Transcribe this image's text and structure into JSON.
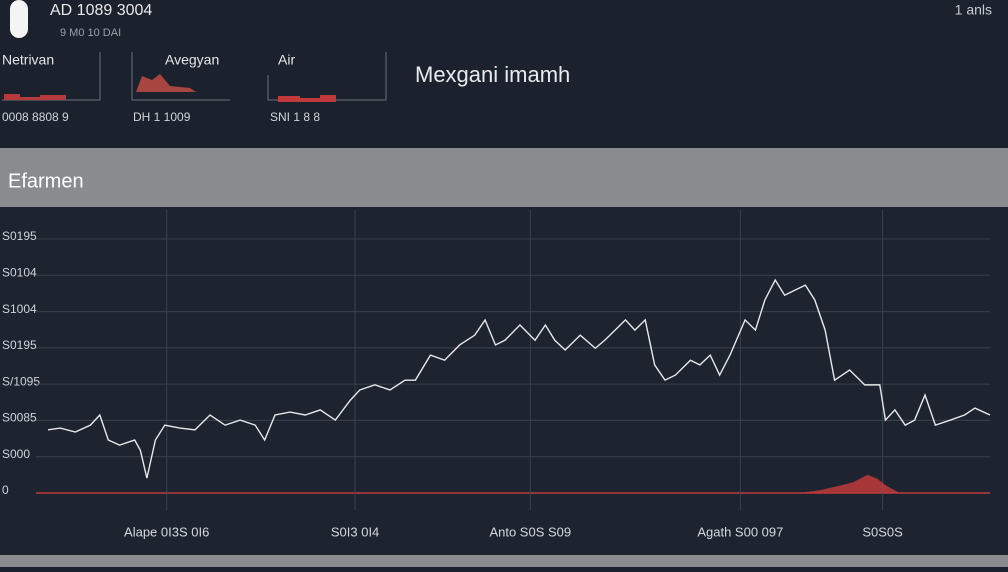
{
  "header": {
    "title": "AD 1089 3004",
    "subtitle": "9 M0 10 DAI",
    "corner": "1 anls"
  },
  "panels": [
    {
      "label": "Netrivan",
      "footer": "0008 8808 9"
    },
    {
      "label": "Avegyan",
      "footer": "DH 1 1009"
    },
    {
      "label": "Air",
      "footer": "SNI 1 8 8"
    }
  ],
  "page_title": "Mexgani imamh",
  "section_title": "Efarmen",
  "chart_data": {
    "type": "line",
    "xlim": [
      0,
      100
    ],
    "ylim": [
      0,
      7.8
    ],
    "yticks": [
      0,
      {
        "value": 1,
        "label": "S000"
      },
      {
        "value": 2,
        "label": "S0085"
      },
      {
        "value": 3,
        "label": "S/1095"
      },
      {
        "value": 4,
        "label": "S0195"
      },
      {
        "value": 5,
        "label": "S1004"
      },
      {
        "value": 6,
        "label": "S0104"
      },
      {
        "value": 7,
        "label": "S0195"
      }
    ],
    "xticks": [
      {
        "value": 12.6,
        "label": "Alape 0I3S 0I6"
      },
      {
        "value": 32.6,
        "label": "S0I3 0I4"
      },
      {
        "value": 51.2,
        "label": "Anto S0S S09"
      },
      {
        "value": 73.5,
        "label": "Agath S00 097"
      },
      {
        "value": 88.6,
        "label": "S0S0S"
      }
    ],
    "grid": true,
    "x": [
      0,
      1.3,
      2.9,
      4.5,
      5.5,
      6.4,
      7.6,
      9.2,
      9.8,
      10.5,
      11.4,
      12.4,
      14.0,
      15.6,
      17.2,
      18.8,
      20.4,
      22.0,
      23.0,
      24.1,
      25.7,
      27.3,
      28.9,
      30.5,
      32.1,
      33.1,
      34.7,
      36.3,
      37.9,
      39.0,
      40.6,
      42.1,
      43.7,
      45.3,
      46.4,
      47.5,
      48.5,
      50.1,
      51.7,
      52.8,
      53.8,
      54.9,
      56.5,
      58.1,
      59.1,
      60.2,
      61.3,
      62.3,
      63.4,
      64.4,
      65.5,
      66.6,
      68.2,
      69.2,
      70.3,
      71.3,
      72.4,
      74.0,
      75.1,
      76.1,
      77.2,
      78.2,
      79.3,
      80.4,
      81.4,
      82.5,
      83.5,
      85.1,
      86.7,
      88.3,
      88.9,
      89.9,
      91.0,
      92.0,
      93.1,
      94.2,
      95.8,
      97.3,
      98.4,
      100
    ],
    "series": [
      {
        "color": "#e6e8ec",
        "values": [
          1.74,
          1.79,
          1.68,
          1.87,
          2.15,
          1.46,
          1.32,
          1.46,
          1.18,
          0.41,
          1.46,
          1.87,
          1.79,
          1.74,
          2.15,
          1.87,
          2.01,
          1.87,
          1.46,
          2.15,
          2.23,
          2.15,
          2.29,
          2.01,
          2.56,
          2.84,
          2.98,
          2.84,
          3.11,
          3.11,
          3.8,
          3.66,
          4.08,
          4.35,
          4.77,
          4.08,
          4.21,
          4.63,
          4.21,
          4.63,
          4.21,
          3.94,
          4.35,
          3.99,
          4.21,
          4.49,
          4.77,
          4.49,
          4.77,
          3.53,
          3.11,
          3.25,
          3.66,
          3.53,
          3.8,
          3.25,
          3.8,
          4.77,
          4.49,
          5.32,
          5.87,
          5.45,
          5.59,
          5.73,
          5.32,
          4.49,
          3.11,
          3.39,
          2.98,
          2.98,
          2.01,
          2.29,
          1.87,
          2.01,
          2.7,
          1.87,
          2.01,
          2.15,
          2.34,
          2.15
        ]
      }
    ],
    "area": {
      "color": "#c0393b",
      "x": [
        79.8,
        82.0,
        84.0,
        85.5,
        87.0,
        88.0,
        89.0,
        90.4
      ],
      "values": [
        0,
        0.08,
        0.2,
        0.3,
        0.5,
        0.4,
        0.2,
        0
      ]
    },
    "baseline_color": "#c0393b"
  }
}
